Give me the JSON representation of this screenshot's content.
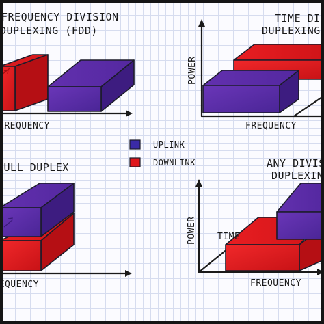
{
  "quadrants": {
    "top_left": {
      "title_line1": "FREQUENCY DIVISION",
      "title_line2": "DUPLEXING (FDD)",
      "x_label": "FREQUENCY"
    },
    "top_right": {
      "title_line1": "TIME DIVI",
      "title_line2": "DUPLEXING",
      "y_label": "POWER",
      "x_label": "FREQUENCY"
    },
    "bottom_left": {
      "title": "FULL DUPLEX",
      "x_label": "FREQUENCY"
    },
    "bottom_right": {
      "title_line1": "ANY DIVISI",
      "title_line2": "DUPLEXING",
      "y_label": "POWER",
      "z_label": "TIME",
      "x_label": "FREQUENCY"
    }
  },
  "legend": {
    "uplink_label": "UPLINK",
    "downlink_label": "DOWNLINK"
  },
  "colors": {
    "uplink": "#5a2aa6",
    "downlink": "#e0161c"
  }
}
